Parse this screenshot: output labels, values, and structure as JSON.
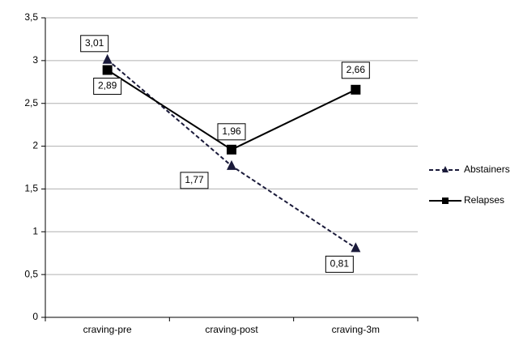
{
  "chart_data": {
    "type": "line",
    "categories": [
      "craving-pre",
      "craving-post",
      "craving-3m"
    ],
    "series": [
      {
        "name": "Abstainers",
        "color": "#1a1a3a",
        "dashed": true,
        "marker": "triangle",
        "values": [
          3.01,
          1.77,
          0.81
        ],
        "value_labels": [
          "3,01",
          "1,77",
          "0,81"
        ]
      },
      {
        "name": "Relapses",
        "color": "#000000",
        "dashed": false,
        "marker": "square",
        "values": [
          2.89,
          1.96,
          2.66
        ],
        "value_labels": [
          "2,89",
          "1,96",
          "2,66"
        ]
      }
    ],
    "ylim": [
      0,
      3.5
    ],
    "yticks": [
      {
        "value": 0,
        "label": "0"
      },
      {
        "value": 0.5,
        "label": "0,5"
      },
      {
        "value": 1,
        "label": "1"
      },
      {
        "value": 1.5,
        "label": "1,5"
      },
      {
        "value": 2,
        "label": "2"
      },
      {
        "value": 2.5,
        "label": "2,5"
      },
      {
        "value": 3,
        "label": "3"
      },
      {
        "value": 3.5,
        "label": "3,5"
      }
    ],
    "grid": true,
    "legend": "right"
  }
}
